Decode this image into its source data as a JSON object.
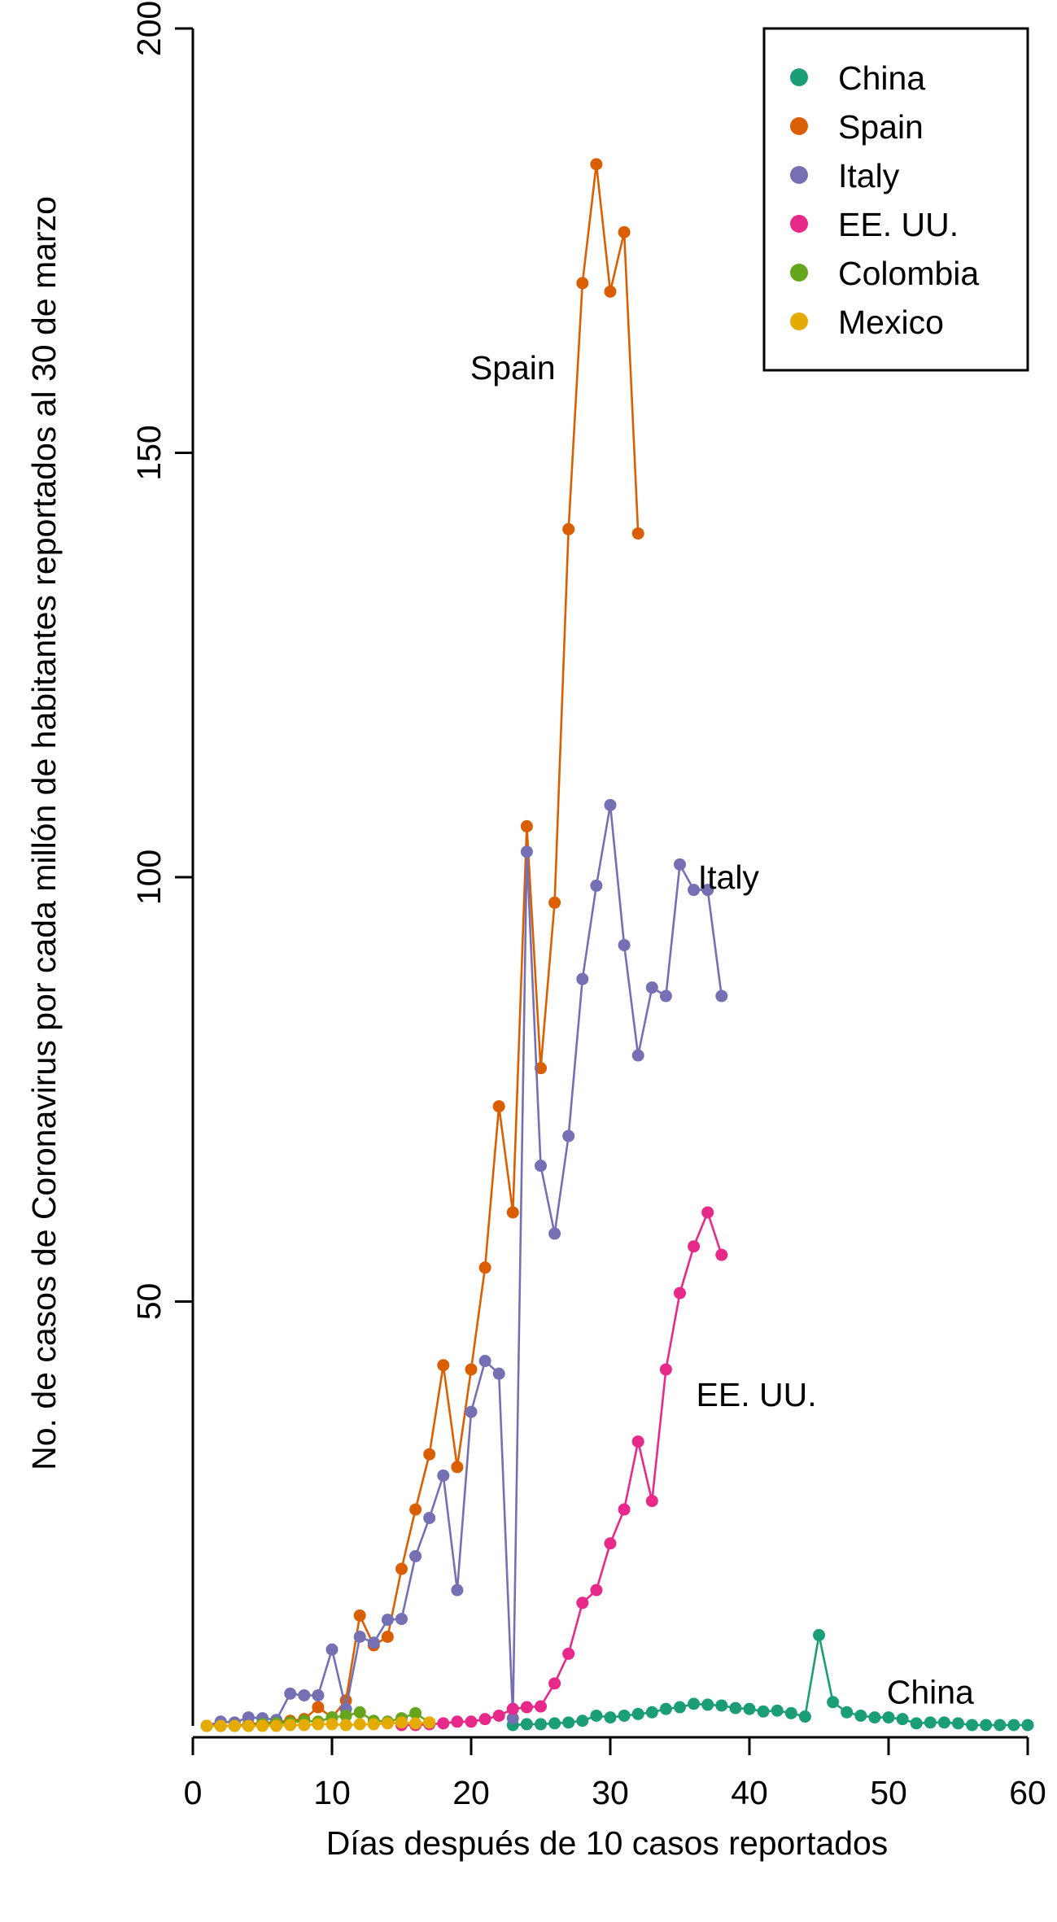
{
  "chart_data": {
    "type": "line",
    "xlabel": "Días después de 10 casos reportados",
    "ylabel": "No. de casos de Coronavirus por cada millón de habitantes reportados al 30 de marzo",
    "xlim": [
      0,
      60
    ],
    "ylim": [
      0,
      200
    ],
    "xticks": [
      0,
      10,
      20,
      30,
      40,
      50,
      60
    ],
    "yticks": [
      50,
      100,
      150,
      200
    ],
    "grid": false,
    "legend_position": "top-right",
    "series": [
      {
        "name": "China",
        "color": "#1b9e77",
        "x": [
          23,
          24,
          25,
          26,
          27,
          28,
          29,
          30,
          31,
          32,
          33,
          34,
          35,
          36,
          37,
          38,
          39,
          40,
          41,
          42,
          43,
          44,
          45,
          46,
          47,
          48,
          49,
          50,
          51,
          52,
          53,
          54,
          55,
          56,
          57,
          58,
          59,
          60
        ],
        "y": [
          0.1,
          0.2,
          0.2,
          0.3,
          0.4,
          0.6,
          1.2,
          1.0,
          1.2,
          1.4,
          1.6,
          2.0,
          2.2,
          2.6,
          2.5,
          2.4,
          2.1,
          2.0,
          1.7,
          1.8,
          1.5,
          1.1,
          10.7,
          2.8,
          1.6,
          1.2,
          1.0,
          1.0,
          0.8,
          0.3,
          0.4,
          0.4,
          0.3,
          0.1,
          0.1,
          0.1,
          0.1,
          0.1
        ]
      },
      {
        "name": "Spain",
        "color": "#d95f02",
        "x": [
          1,
          2,
          3,
          4,
          5,
          6,
          7,
          8,
          9,
          10,
          11,
          12,
          13,
          14,
          15,
          16,
          17,
          18,
          19,
          20,
          21,
          22,
          23,
          24,
          25,
          26,
          27,
          28,
          29,
          30,
          31,
          32
        ],
        "y": [
          0,
          0,
          0,
          0.2,
          0.3,
          0.5,
          0.6,
          0.8,
          2.2,
          1.0,
          3.0,
          13.0,
          9.5,
          10.5,
          18.5,
          25.5,
          32.0,
          42.5,
          30.5,
          42.0,
          54.0,
          73.0,
          60.5,
          106.0,
          77.5,
          97.0,
          141.0,
          170.0,
          184.0,
          169.0,
          176.0,
          140.5
        ]
      },
      {
        "name": "Italy",
        "color": "#7570b3",
        "x": [
          1,
          2,
          3,
          4,
          5,
          6,
          7,
          8,
          9,
          10,
          11,
          12,
          13,
          14,
          15,
          16,
          17,
          18,
          19,
          20,
          21,
          22,
          23,
          24,
          25,
          26,
          27,
          28,
          29,
          30,
          31,
          32,
          33,
          34,
          35,
          36,
          37,
          38
        ],
        "y": [
          0,
          0.5,
          0.4,
          1.0,
          0.9,
          0.7,
          3.8,
          3.6,
          3.6,
          9.0,
          2.0,
          10.5,
          9.8,
          12.5,
          12.6,
          20.0,
          24.5,
          29.5,
          16.0,
          37.0,
          43.0,
          41.5,
          0.9,
          103.0,
          66.0,
          58.0,
          69.5,
          88.0,
          99.0,
          108.5,
          92.0,
          79.0,
          87.0,
          86.0,
          101.5,
          98.5,
          98.5,
          86.0
        ]
      },
      {
        "name": "EE. UU.",
        "color": "#e7298a",
        "x": [
          15,
          16,
          17,
          18,
          19,
          20,
          21,
          22,
          23,
          24,
          25,
          26,
          27,
          28,
          29,
          30,
          31,
          32,
          33,
          34,
          35,
          36,
          37,
          38
        ],
        "y": [
          0.1,
          0.1,
          0.2,
          0.3,
          0.5,
          0.5,
          0.8,
          1.2,
          2.0,
          2.2,
          2.3,
          5.0,
          8.5,
          14.5,
          16.0,
          21.5,
          25.5,
          33.5,
          26.5,
          42.0,
          51.0,
          56.5,
          60.5,
          55.5
        ]
      },
      {
        "name": "Colombia",
        "color": "#66a61e",
        "x": [
          1,
          2,
          3,
          4,
          5,
          6,
          7,
          8,
          9,
          10,
          11,
          12,
          13,
          14,
          15,
          16,
          17
        ],
        "y": [
          0,
          0,
          0,
          0,
          0.2,
          0.3,
          0.4,
          0.6,
          0.5,
          1.0,
          1.2,
          1.6,
          0.6,
          0.5,
          0.9,
          1.5,
          0.4
        ]
      },
      {
        "name": "Mexico",
        "color": "#e6ab02",
        "x": [
          1,
          2,
          3,
          4,
          5,
          6,
          7,
          8,
          9,
          10,
          11,
          12,
          13,
          14,
          15,
          16,
          17
        ],
        "y": [
          0,
          0,
          0,
          0,
          0,
          0,
          0.1,
          0.1,
          0.2,
          0.2,
          0.1,
          0.2,
          0.2,
          0.3,
          0.4,
          0.3,
          0.4
        ]
      }
    ],
    "annotations": [
      {
        "text": "Spain",
        "x": 23,
        "y": 160
      },
      {
        "text": "Italy",
        "x": 38.5,
        "y": 100
      },
      {
        "text": "EE. UU.",
        "x": 40.5,
        "y": 39
      },
      {
        "text": "China",
        "x": 53,
        "y": 4
      }
    ]
  }
}
